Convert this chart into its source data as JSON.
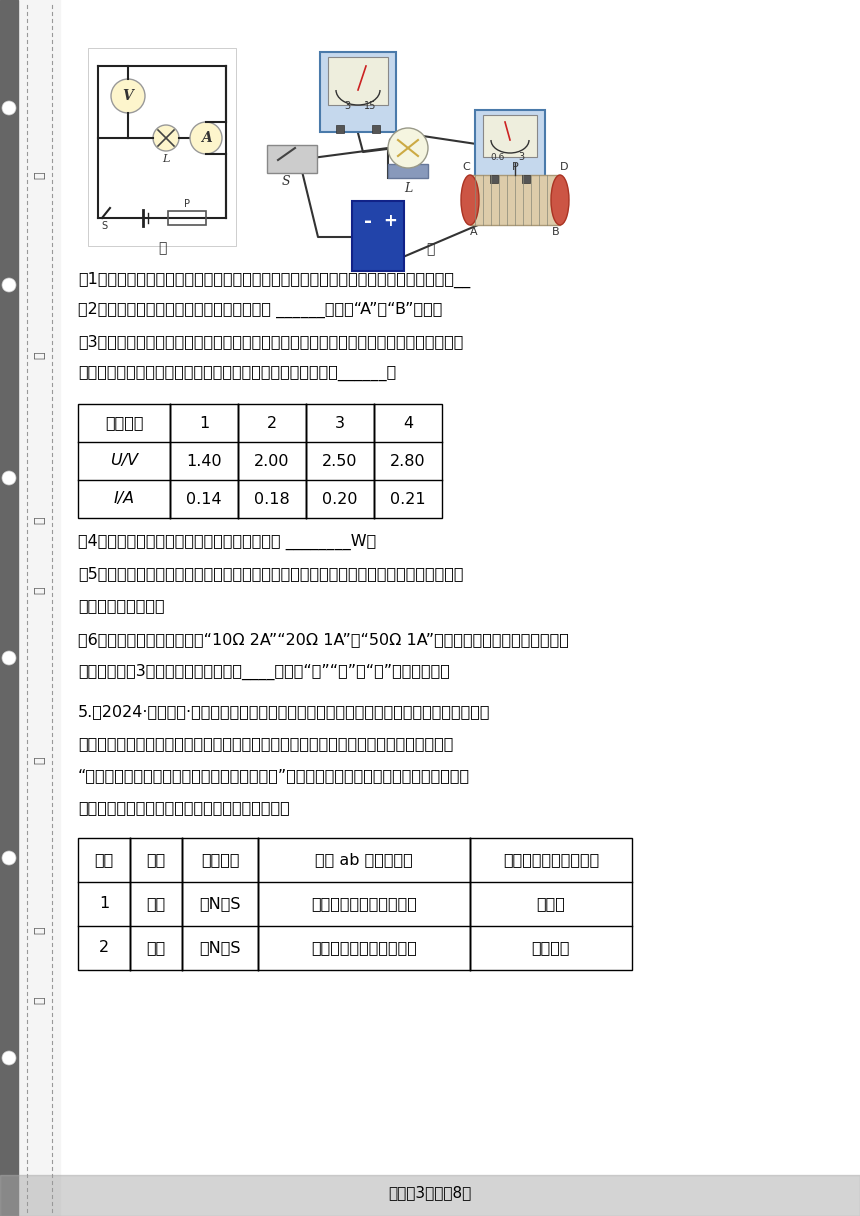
{
  "page_bg": "#ffffff",
  "text_color": "#000000",
  "page_number_text": "试卷煱3页，共8页",
  "q1_text": "（1）请你用笔画线代替导线，根据图甲所示的电路图，将图乙所示的实物图连接完整：__",
  "q2_text": "（2）闭合开关前，滑动变阻器的滑片应置于 ______（选填“A”或“B”）端；",
  "q3_text_1": "（3）表格为他们所测得的四次实验数据得，丁玲同学在四次实验中观察到，灯的亮度是后",
  "q3_text_2": "一次都比前一次亮。结合表中数据得出的结论是：小灯泡越亮______；",
  "q4_text": "（4）根据实验数据可得，小灯泡的额定功率是 ________W；",
  "q5_text_1": "（5）小明同学在计算小灯泡的电阻时，取了所求四次电阻的平均値。这种计算方法忽略了",
  "q5_text_2": "对灯泡电阻的影响；",
  "q6_text_1": "（6）已知实验室内有规格为“10Ω 2A”“20Ω 1A”和“50Ω 1A”的甲、乙、丙三个滑动变阻器供",
  "q6_text_2": "选用，根据（3）中表格内的数据可知____（选填“甲”“乙”或“丙”）接入电路。",
  "q5_title": "5.（2024·甘肃武威·一模）为进一步研究电现象与磁现象之间的联系，青龙县某物理兴趣小",
  "q5_line2": "组利用身边的实验器材做了下面的探究实验。该小组的小兵同学利用如图所示的实验装置",
  "q5_line3": "“探究导体在磁场中运动时产生感应电流的条件”；闭合开关后（电流表）、开关组成闭合电",
  "q5_line4": "路；小兵将实验中观察得到的现象记录在下表中。",
  "table1_headers": [
    "实验次数",
    "1",
    "2",
    "3",
    "4"
  ],
  "table1_row1": [
    "U/V",
    "1.40",
    "2.00",
    "2.50",
    "2.80"
  ],
  "table1_row2": [
    "I/A",
    "0.14",
    "0.18",
    "0.20",
    "0.21"
  ],
  "table2_headers": [
    "次数",
    "开关",
    "磁场方向",
    "导体 ab 的运动方向",
    "电流表指针的偏转方向"
  ],
  "table2_row1": [
    "1",
    "断开",
    "上N下S",
    "向右运动（切割磁感线）",
    "不偏转"
  ],
  "table2_row2": [
    "2",
    "闭合",
    "上N下S",
    "向右运动（切割磁感线）",
    "向左偏转"
  ]
}
